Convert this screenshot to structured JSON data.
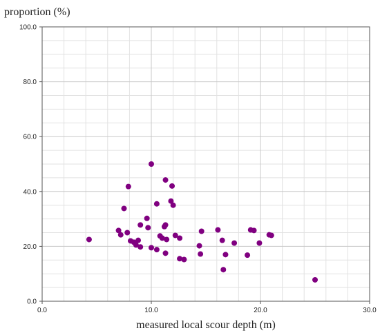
{
  "chart_data": {
    "type": "scatter",
    "ylabel": "proportion (%)",
    "xlabel": "measured local scour depth (m)",
    "xlim": [
      0,
      30
    ],
    "ylim": [
      0,
      100
    ],
    "x_ticks": [
      0,
      10,
      20,
      30
    ],
    "y_ticks": [
      0,
      20,
      40,
      60,
      80,
      100
    ],
    "x_tick_labels": [
      "0.0",
      "10.0",
      "20.0",
      "30.0"
    ],
    "y_tick_labels": [
      "0.0",
      "20.0",
      "40.0",
      "60.0",
      "80.0",
      "100.0"
    ],
    "grid": true,
    "marker_color": "#800080",
    "points": [
      {
        "x": 4.3,
        "y": 22.5
      },
      {
        "x": 7.0,
        "y": 25.8
      },
      {
        "x": 7.2,
        "y": 24.2
      },
      {
        "x": 7.5,
        "y": 33.8
      },
      {
        "x": 7.8,
        "y": 25.0
      },
      {
        "x": 7.9,
        "y": 41.8
      },
      {
        "x": 8.1,
        "y": 22.0
      },
      {
        "x": 8.4,
        "y": 21.5
      },
      {
        "x": 8.6,
        "y": 20.5
      },
      {
        "x": 8.8,
        "y": 22.2
      },
      {
        "x": 9.0,
        "y": 19.8
      },
      {
        "x": 9.0,
        "y": 27.8
      },
      {
        "x": 9.6,
        "y": 30.2
      },
      {
        "x": 9.7,
        "y": 26.8
      },
      {
        "x": 10.0,
        "y": 50.0
      },
      {
        "x": 10.0,
        "y": 19.5
      },
      {
        "x": 10.5,
        "y": 18.8
      },
      {
        "x": 10.5,
        "y": 35.5
      },
      {
        "x": 10.8,
        "y": 23.8
      },
      {
        "x": 11.0,
        "y": 23.0
      },
      {
        "x": 11.2,
        "y": 27.2
      },
      {
        "x": 11.3,
        "y": 44.2
      },
      {
        "x": 11.3,
        "y": 27.8
      },
      {
        "x": 11.4,
        "y": 22.5
      },
      {
        "x": 11.3,
        "y": 17.5
      },
      {
        "x": 11.8,
        "y": 36.5
      },
      {
        "x": 11.9,
        "y": 42.0
      },
      {
        "x": 12.0,
        "y": 35.0
      },
      {
        "x": 12.2,
        "y": 24.0
      },
      {
        "x": 12.6,
        "y": 15.5
      },
      {
        "x": 12.6,
        "y": 23.0
      },
      {
        "x": 13.0,
        "y": 15.2
      },
      {
        "x": 14.4,
        "y": 20.2
      },
      {
        "x": 14.5,
        "y": 17.2
      },
      {
        "x": 14.6,
        "y": 25.5
      },
      {
        "x": 16.1,
        "y": 26.0
      },
      {
        "x": 16.5,
        "y": 22.2
      },
      {
        "x": 16.6,
        "y": 11.5
      },
      {
        "x": 16.8,
        "y": 17.0
      },
      {
        "x": 17.6,
        "y": 21.2
      },
      {
        "x": 18.8,
        "y": 16.8
      },
      {
        "x": 19.1,
        "y": 26.0
      },
      {
        "x": 19.4,
        "y": 25.8
      },
      {
        "x": 19.9,
        "y": 21.2
      },
      {
        "x": 20.8,
        "y": 24.2
      },
      {
        "x": 21.0,
        "y": 24.0
      },
      {
        "x": 25.0,
        "y": 7.8
      }
    ]
  }
}
